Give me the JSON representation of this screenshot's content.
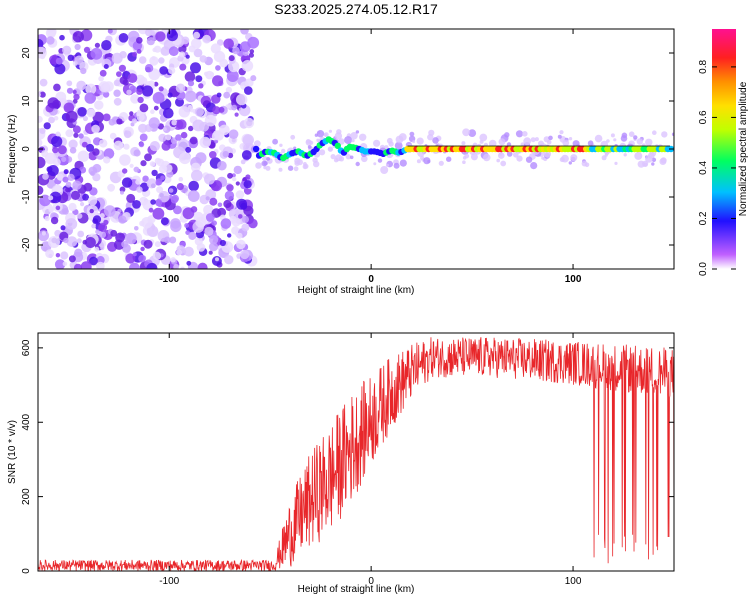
{
  "title": "S233.2025.274.05.12.R17",
  "chart_data": [
    {
      "type": "heatmap",
      "xlabel": "Height of straight line (km)",
      "ylabel": "Frequency (Hz)",
      "xlim": [
        -165,
        150
      ],
      "ylim": [
        -25,
        25
      ],
      "xticks": [
        -100,
        0,
        100
      ],
      "yticks": [
        -20,
        -10,
        0,
        10,
        20
      ],
      "noise_region_x": [
        -165,
        -58
      ],
      "ridge": [
        {
          "x": -56,
          "y": -1.5
        },
        {
          "x": -52,
          "y": -0.5
        },
        {
          "x": -48,
          "y": -0.8
        },
        {
          "x": -44,
          "y": -2.0
        },
        {
          "x": -40,
          "y": -1.0
        },
        {
          "x": -36,
          "y": -0.5
        },
        {
          "x": -32,
          "y": -1.5
        },
        {
          "x": -28,
          "y": -0.5
        },
        {
          "x": -25,
          "y": 1.0
        },
        {
          "x": -21,
          "y": 2.0
        },
        {
          "x": -17,
          "y": 1.0
        },
        {
          "x": -14,
          "y": -1.0
        },
        {
          "x": -11,
          "y": 0.5
        },
        {
          "x": -7,
          "y": 0.2
        },
        {
          "x": -3,
          "y": -0.5
        },
        {
          "x": 2,
          "y": -0.5
        },
        {
          "x": 6,
          "y": -1.0
        },
        {
          "x": 10,
          "y": -0.3
        },
        {
          "x": 14,
          "y": -0.8
        },
        {
          "x": 18,
          "y": 0
        },
        {
          "x": 30,
          "y": 0
        },
        {
          "x": 60,
          "y": 0
        },
        {
          "x": 100,
          "y": 0
        },
        {
          "x": 148,
          "y": 0
        }
      ],
      "colorbar": {
        "label": "Normalized spectral amplitude",
        "ticks": [
          0.0,
          0.2,
          0.4,
          0.6,
          0.8
        ],
        "tick_labels": [
          "0.0",
          "0.2",
          "0.4",
          "0.6",
          "0.8"
        ],
        "range": [
          0,
          0.95
        ],
        "stops": [
          "#ffffff",
          "#c060ff",
          "#2010ff",
          "#00c0ff",
          "#00ff60",
          "#c0ff00",
          "#ffe000",
          "#ff9000",
          "#ff2020",
          "#ff1090"
        ]
      }
    },
    {
      "type": "line",
      "xlabel": "Height of straight line (km)",
      "ylabel": "SNR (10 * v/v)",
      "xlim": [
        -165,
        150
      ],
      "ylim": [
        0,
        640
      ],
      "xticks": [
        -100,
        0,
        100
      ],
      "yticks": [
        0,
        200,
        400,
        600
      ],
      "series": [
        {
          "color": "#e8262a",
          "envelope": [
            {
              "x": -165,
              "lo": 0,
              "hi": 30
            },
            {
              "x": -48,
              "lo": 0,
              "hi": 30
            },
            {
              "x": -40,
              "lo": 10,
              "hi": 200
            },
            {
              "x": -30,
              "lo": 60,
              "hi": 320
            },
            {
              "x": -20,
              "lo": 100,
              "hi": 400
            },
            {
              "x": -10,
              "lo": 180,
              "hi": 480
            },
            {
              "x": 0,
              "lo": 280,
              "hi": 530
            },
            {
              "x": 10,
              "lo": 380,
              "hi": 580
            },
            {
              "x": 20,
              "lo": 460,
              "hi": 610
            },
            {
              "x": 30,
              "lo": 520,
              "hi": 630
            },
            {
              "x": 60,
              "lo": 520,
              "hi": 630
            },
            {
              "x": 100,
              "lo": 500,
              "hi": 620
            },
            {
              "x": 150,
              "lo": 460,
              "hi": 600
            }
          ],
          "dropouts": [
            {
              "from": 110,
              "to": 150,
              "lo": 20
            }
          ]
        }
      ]
    }
  ]
}
